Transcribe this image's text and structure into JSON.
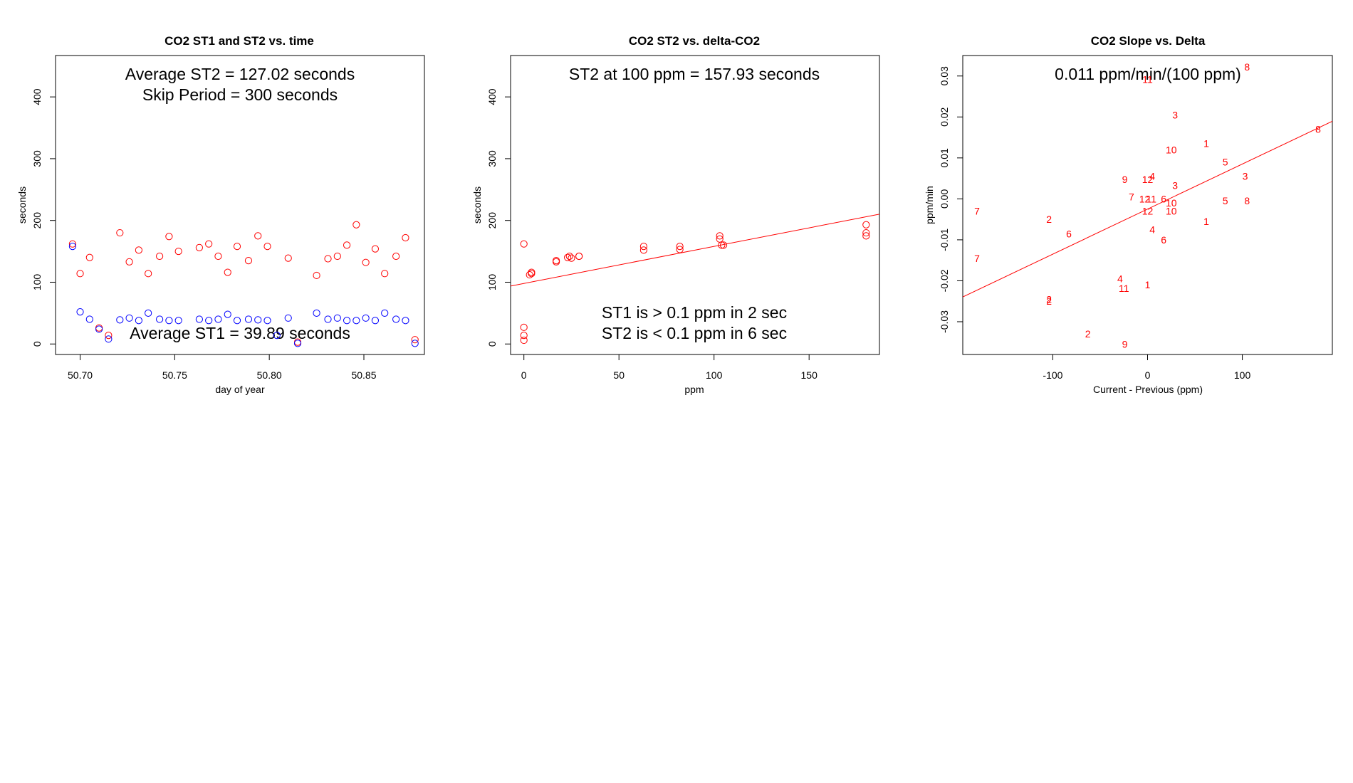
{
  "chart_data": [
    {
      "type": "scatter",
      "title": "CO2 ST1 and ST2 vs. time",
      "xlabel": "day of year",
      "ylabel": "seconds",
      "xlim": [
        50.687,
        50.882
      ],
      "ylim": [
        -17,
        467
      ],
      "xticks": [
        50.7,
        50.75,
        50.8,
        50.85
      ],
      "xtick_labels": [
        "50.70",
        "50.75",
        "50.80",
        "50.85"
      ],
      "yticks": [
        0,
        100,
        200,
        300,
        400
      ],
      "ytick_labels": [
        "0",
        "100",
        "200",
        "300",
        "400"
      ],
      "annotations": [
        {
          "text": "Average ST2 =  127.02  seconds",
          "pos": "top-center-line1"
        },
        {
          "text": "Skip Period =  300  seconds",
          "pos": "top-center-line2"
        },
        {
          "text": "Average ST1 =  39.89  seconds",
          "pos": "bottom-center"
        }
      ],
      "series": [
        {
          "name": "ST2",
          "color": "#ff0000",
          "marker": "open-circle",
          "x": [
            50.696,
            50.7,
            50.705,
            50.71,
            50.715,
            50.721,
            50.726,
            50.731,
            50.736,
            50.742,
            50.747,
            50.752,
            50.763,
            50.768,
            50.773,
            50.778,
            50.783,
            50.789,
            50.794,
            50.799,
            50.81,
            50.815,
            50.825,
            50.831,
            50.836,
            50.841,
            50.846,
            50.851,
            50.856,
            50.861,
            50.867,
            50.872,
            50.877
          ],
          "y": [
            162,
            114,
            140,
            26,
            14,
            180,
            133,
            152,
            114,
            142,
            174,
            150,
            156,
            162,
            142,
            116,
            158,
            135,
            175,
            158,
            139,
            3,
            111,
            138,
            142,
            160,
            193,
            132,
            154,
            114,
            142,
            172,
            7
          ]
        },
        {
          "name": "ST1",
          "color": "#0000ff",
          "marker": "open-circle",
          "x": [
            50.696,
            50.7,
            50.705,
            50.71,
            50.715,
            50.721,
            50.726,
            50.731,
            50.736,
            50.742,
            50.747,
            50.752,
            50.763,
            50.768,
            50.773,
            50.778,
            50.783,
            50.789,
            50.794,
            50.799,
            50.804,
            50.81,
            50.815,
            50.825,
            50.831,
            50.836,
            50.841,
            50.846,
            50.851,
            50.856,
            50.861,
            50.867,
            50.872,
            50.877
          ],
          "y": [
            158,
            52,
            40,
            24,
            8,
            39,
            42,
            38,
            50,
            40,
            38,
            38,
            40,
            38,
            40,
            48,
            38,
            40,
            39,
            38,
            14,
            42,
            1,
            50,
            40,
            42,
            38,
            38,
            42,
            38,
            50,
            40,
            38,
            1
          ]
        }
      ]
    },
    {
      "type": "scatter",
      "title": "CO2 ST2 vs. delta-CO2",
      "xlabel": "ppm",
      "ylabel": "seconds",
      "xlim": [
        -7,
        187
      ],
      "ylim": [
        -17,
        467
      ],
      "xticks": [
        0,
        50,
        100,
        150
      ],
      "xtick_labels": [
        "0",
        "50",
        "100",
        "150"
      ],
      "yticks": [
        0,
        100,
        200,
        300,
        400
      ],
      "ytick_labels": [
        "0",
        "100",
        "200",
        "300",
        "400"
      ],
      "annotations": [
        {
          "text": "ST2 at 100 ppm =  157.93  seconds",
          "pos": "top-center"
        },
        {
          "text": "ST1 is > 0.1 ppm in 2 sec",
          "pos": "bottom-center-line1"
        },
        {
          "text": "ST2 is < 0.1 ppm in 6 sec",
          "pos": "bottom-center-line2"
        }
      ],
      "fit_line": {
        "intercept": 98,
        "slope": 0.6,
        "color": "#ff0000"
      },
      "series": [
        {
          "name": "ST2",
          "color": "#ff0000",
          "marker": "open-circle",
          "x": [
            0,
            0,
            0,
            0,
            3,
            4,
            4,
            17,
            17,
            23,
            24,
            25,
            29,
            29,
            63,
            63,
            82,
            82,
            103,
            103,
            104,
            105,
            180,
            180,
            180
          ],
          "y": [
            162,
            27,
            14,
            6,
            112,
            114,
            116,
            133,
            135,
            140,
            142,
            139,
            142,
            142,
            152,
            158,
            153,
            158,
            170,
            175,
            160,
            160,
            193,
            180,
            175
          ]
        }
      ]
    },
    {
      "type": "scatter",
      "title": "CO2 Slope vs. Delta",
      "xlabel": "Current - Previous (ppm)",
      "ylabel": "ppm/min",
      "xlim": [
        -195,
        195
      ],
      "ylim": [
        -0.038,
        0.035
      ],
      "xticks": [
        -100,
        0,
        100
      ],
      "xtick_labels": [
        "-100",
        "0",
        "100"
      ],
      "yticks": [
        -0.03,
        -0.02,
        -0.01,
        0.0,
        0.01,
        0.02,
        0.03
      ],
      "ytick_labels": [
        "-0.03",
        "-0.02",
        "-0.01",
        "0.00",
        "0.01",
        "0.02",
        "0.03"
      ],
      "annotations": [
        {
          "text": "0.011  ppm/min/(100 ppm)",
          "pos": "top-center"
        }
      ],
      "fit_line": {
        "intercept": -0.0025,
        "slope": 0.00011,
        "color": "#ff0000"
      },
      "marker_style": "text-label",
      "points": [
        {
          "x": 105,
          "y": 0.0322,
          "label": "8"
        },
        {
          "x": 0,
          "y": 0.0292,
          "label": "11"
        },
        {
          "x": 29,
          "y": 0.0205,
          "label": "3"
        },
        {
          "x": 62,
          "y": 0.0135,
          "label": "1"
        },
        {
          "x": 25,
          "y": 0.012,
          "label": "10"
        },
        {
          "x": 82,
          "y": 0.009,
          "label": "5"
        },
        {
          "x": 180,
          "y": 0.017,
          "label": "8"
        },
        {
          "x": 103,
          "y": 0.0055,
          "label": "3"
        },
        {
          "x": 5,
          "y": 0.0055,
          "label": "4"
        },
        {
          "x": 0,
          "y": 0.0048,
          "label": "12"
        },
        {
          "x": -24,
          "y": 0.0048,
          "label": "9"
        },
        {
          "x": 29,
          "y": 0.0033,
          "label": "3"
        },
        {
          "x": -17,
          "y": 0.0005,
          "label": "7"
        },
        {
          "x": -3,
          "y": 0.0,
          "label": "12"
        },
        {
          "x": 4,
          "y": 0.0,
          "label": "11"
        },
        {
          "x": 17,
          "y": 0.0,
          "label": "6"
        },
        {
          "x": 25,
          "y": -0.001,
          "label": "10"
        },
        {
          "x": 82,
          "y": -0.0005,
          "label": "5"
        },
        {
          "x": 105,
          "y": -0.0005,
          "label": "8"
        },
        {
          "x": -180,
          "y": -0.003,
          "label": "7"
        },
        {
          "x": 0,
          "y": -0.003,
          "label": "12"
        },
        {
          "x": 25,
          "y": -0.003,
          "label": "10"
        },
        {
          "x": -104,
          "y": -0.005,
          "label": "2"
        },
        {
          "x": 62,
          "y": -0.0055,
          "label": "1"
        },
        {
          "x": 5,
          "y": -0.0075,
          "label": "4"
        },
        {
          "x": -83,
          "y": -0.0085,
          "label": "6"
        },
        {
          "x": 17,
          "y": -0.01,
          "label": "6"
        },
        {
          "x": -180,
          "y": -0.0145,
          "label": "7"
        },
        {
          "x": -29,
          "y": -0.0195,
          "label": "4"
        },
        {
          "x": 0,
          "y": -0.021,
          "label": "1"
        },
        {
          "x": -25,
          "y": -0.0218,
          "label": "11"
        },
        {
          "x": -104,
          "y": -0.0245,
          "label": "2"
        },
        {
          "x": -104,
          "y": -0.025,
          "label": "2"
        },
        {
          "x": -63,
          "y": -0.033,
          "label": "2"
        },
        {
          "x": -24,
          "y": -0.0355,
          "label": "9"
        }
      ]
    }
  ]
}
